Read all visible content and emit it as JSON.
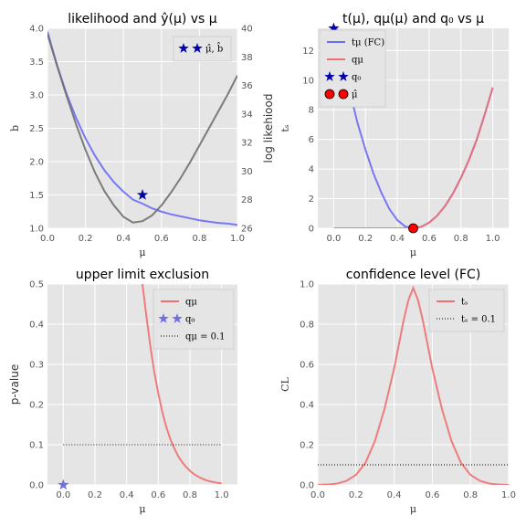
{
  "chart_data": [
    {
      "type": "line",
      "title": "likelihood and ŷ(μ) vs μ",
      "xlabel": "μ",
      "ylabel": "b",
      "ylabel_right": "log likehiood",
      "xlim": [
        0.0,
        1.0
      ],
      "ylim": [
        1.0,
        4.0
      ],
      "ylim_right": [
        26,
        40
      ],
      "xticks": [
        "0.0",
        "0.2",
        "0.4",
        "0.6",
        "0.8",
        "1.0"
      ],
      "yticks": [
        "1.0",
        "1.5",
        "2.0",
        "2.5",
        "3.0",
        "3.5",
        "4.0"
      ],
      "yticks_right": [
        "26",
        "28",
        "30",
        "32",
        "34",
        "36",
        "38",
        "40"
      ],
      "grid": true,
      "legend": {
        "placement": "top-right",
        "entries": [
          {
            "label": "μ̂, b̂",
            "marker": "star",
            "color": "#0000aa"
          }
        ]
      },
      "series": [
        {
          "axis": "left",
          "color": "#6b6bf5",
          "x": [
            0.0,
            0.05,
            0.1,
            0.15,
            0.2,
            0.25,
            0.3,
            0.35,
            0.4,
            0.45,
            0.5,
            0.55,
            0.6,
            0.65,
            0.7,
            0.75,
            0.8,
            0.85,
            0.9,
            0.95,
            1.0
          ],
          "values": [
            3.95,
            3.45,
            3.02,
            2.66,
            2.35,
            2.09,
            1.87,
            1.69,
            1.55,
            1.43,
            1.37,
            1.3,
            1.25,
            1.21,
            1.18,
            1.15,
            1.12,
            1.1,
            1.08,
            1.07,
            1.05
          ]
        },
        {
          "axis": "right",
          "color": "#6f6f6f",
          "x": [
            0.0,
            0.05,
            0.1,
            0.15,
            0.2,
            0.25,
            0.3,
            0.35,
            0.4,
            0.45,
            0.5,
            0.55,
            0.6,
            0.65,
            0.7,
            0.75,
            0.8,
            0.85,
            0.9,
            0.95,
            1.0
          ],
          "values": [
            39.6,
            37.4,
            35.3,
            33.3,
            31.5,
            29.9,
            28.6,
            27.6,
            26.8,
            26.4,
            26.5,
            26.9,
            27.6,
            28.5,
            29.5,
            30.6,
            31.8,
            33.0,
            34.2,
            35.4,
            36.7
          ]
        }
      ],
      "points": [
        {
          "x": 0.5,
          "y": 1.5,
          "marker": "star",
          "color": "#0000aa"
        }
      ]
    },
    {
      "type": "line",
      "title": "t(μ), qμ(μ) and q₀ vs μ",
      "xlabel": "μ",
      "ylabel": "tₛ",
      "xlim": [
        -0.1,
        1.1
      ],
      "ylim": [
        0,
        13.5
      ],
      "xticks": [
        "0.0",
        "0.2",
        "0.4",
        "0.6",
        "0.8",
        "1.0"
      ],
      "yticks": [
        "0",
        "2",
        "4",
        "6",
        "8",
        "10",
        "12"
      ],
      "grid": true,
      "legend": {
        "placement": "top-left",
        "entries": [
          {
            "label": "tμ (FC)",
            "marker": "line",
            "color": "#6b6bf5"
          },
          {
            "label": "qμ",
            "marker": "line",
            "color": "#f07070"
          },
          {
            "label": "q₀",
            "marker": "star",
            "color": "#0000aa"
          },
          {
            "label": "μ̂",
            "marker": "circle",
            "color": "#ff0000"
          }
        ]
      },
      "series": [
        {
          "name": "tμ (FC)",
          "color": "#6b6bf5",
          "x": [
            0.0,
            0.05,
            0.1,
            0.15,
            0.2,
            0.25,
            0.3,
            0.35,
            0.4,
            0.45,
            0.5,
            0.55,
            0.6,
            0.65,
            0.7,
            0.75,
            0.8,
            0.85,
            0.9,
            0.95,
            1.0
          ],
          "values": [
            14.5,
            11.7,
            9.3,
            7.1,
            5.3,
            3.7,
            2.4,
            1.3,
            0.55,
            0.12,
            0.0,
            0.1,
            0.38,
            0.85,
            1.5,
            2.35,
            3.4,
            4.6,
            6.0,
            7.7,
            9.5
          ]
        },
        {
          "name": "qμ",
          "color": "#f07070",
          "x": [
            0.0,
            0.05,
            0.1,
            0.15,
            0.2,
            0.25,
            0.3,
            0.35,
            0.4,
            0.45,
            0.5,
            0.55,
            0.6,
            0.65,
            0.7,
            0.75,
            0.8,
            0.85,
            0.9,
            0.95,
            1.0
          ],
          "values": [
            0,
            0,
            0,
            0,
            0,
            0,
            0,
            0,
            0,
            0,
            0.0,
            0.1,
            0.38,
            0.85,
            1.5,
            2.35,
            3.4,
            4.6,
            6.0,
            7.7,
            9.5
          ]
        }
      ],
      "points": [
        {
          "x": 0.0,
          "y": 13.5,
          "marker": "star",
          "color": "#0000aa"
        },
        {
          "x": 0.5,
          "y": 0.0,
          "marker": "circle",
          "color": "#ff0000"
        }
      ]
    },
    {
      "type": "line",
      "title": "upper limit exclusion",
      "xlabel": "μ",
      "ylabel": "p-value",
      "xlim": [
        -0.1,
        1.1
      ],
      "ylim": [
        0.0,
        0.5
      ],
      "xticks": [
        "0.0",
        "0.2",
        "0.4",
        "0.6",
        "0.8",
        "1.0"
      ],
      "yticks": [
        "0.0",
        "0.1",
        "0.2",
        "0.3",
        "0.4",
        "0.5"
      ],
      "grid": true,
      "legend": {
        "placement": "top-right",
        "entries": [
          {
            "label": "qμ",
            "marker": "line",
            "color": "#f07070"
          },
          {
            "label": "q₀",
            "marker": "star",
            "color": "#7070e0"
          },
          {
            "label": "qμ = 0.1",
            "marker": "dotted",
            "color": "#000000"
          }
        ]
      },
      "series": [
        {
          "name": "qμ",
          "color": "#f07070",
          "x": [
            0.5,
            0.525,
            0.55,
            0.575,
            0.6,
            0.625,
            0.65,
            0.675,
            0.7,
            0.725,
            0.75,
            0.775,
            0.8,
            0.825,
            0.85,
            0.875,
            0.9,
            0.925,
            0.95,
            0.975,
            1.0
          ],
          "values": [
            0.5,
            0.42,
            0.345,
            0.28,
            0.228,
            0.182,
            0.145,
            0.115,
            0.092,
            0.072,
            0.057,
            0.045,
            0.035,
            0.027,
            0.021,
            0.016,
            0.012,
            0.009,
            0.007,
            0.005,
            0.004
          ]
        },
        {
          "name": "qμ = 0.1",
          "style": "dotted",
          "color": "#000000",
          "x": [
            0.0,
            1.0
          ],
          "values": [
            0.1,
            0.1
          ]
        }
      ],
      "points": [
        {
          "x": 0.0,
          "y": 0.0,
          "marker": "star",
          "color": "#7070e0"
        }
      ]
    },
    {
      "type": "line",
      "title": "confidence level (FC)",
      "xlabel": "μ",
      "ylabel": "CL",
      "xlim": [
        0.0,
        1.0
      ],
      "ylim": [
        0.0,
        1.0
      ],
      "xticks": [
        "0.0",
        "0.2",
        "0.4",
        "0.6",
        "0.8",
        "1.0"
      ],
      "yticks": [
        "0.0",
        "0.2",
        "0.4",
        "0.6",
        "0.8",
        "1.0"
      ],
      "grid": true,
      "legend": {
        "placement": "top-right",
        "entries": [
          {
            "label": "tₛ",
            "marker": "line",
            "color": "#f07070"
          },
          {
            "label": "tₛ = 0.1",
            "marker": "dotted",
            "color": "#000000"
          }
        ]
      },
      "series": [
        {
          "name": "tₛ",
          "color": "#f07070",
          "x": [
            0.0,
            0.05,
            0.1,
            0.15,
            0.2,
            0.25,
            0.3,
            0.35,
            0.4,
            0.45,
            0.475,
            0.5,
            0.525,
            0.55,
            0.6,
            0.65,
            0.7,
            0.75,
            0.8,
            0.85,
            0.9,
            0.95,
            1.0
          ],
          "values": [
            0.0,
            0.002,
            0.006,
            0.02,
            0.05,
            0.11,
            0.22,
            0.38,
            0.58,
            0.82,
            0.92,
            0.98,
            0.92,
            0.82,
            0.58,
            0.38,
            0.22,
            0.11,
            0.05,
            0.02,
            0.006,
            0.002,
            0.0
          ]
        },
        {
          "name": "tₛ = 0.1",
          "style": "dotted",
          "color": "#000000",
          "x": [
            0.0,
            1.0
          ],
          "values": [
            0.1,
            0.1
          ]
        }
      ]
    }
  ]
}
